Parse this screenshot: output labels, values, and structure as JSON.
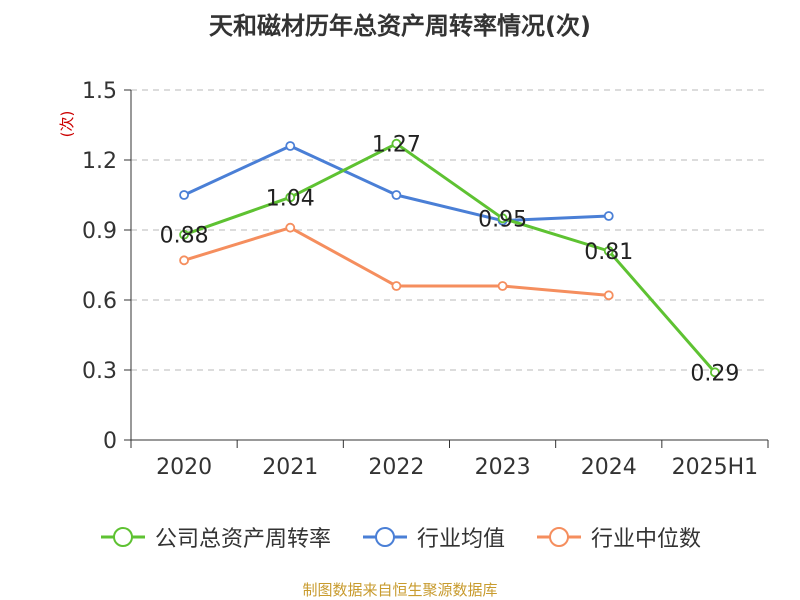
{
  "title": "天和磁材历年总资产周转率情况(次)",
  "source": "制图数据来自恒生聚源数据库",
  "chart_data": {
    "type": "line",
    "title": "天和磁材历年总资产周转率情况(次)",
    "ylabel": "(次)",
    "xlabel": "",
    "categories": [
      "2020",
      "2021",
      "2022",
      "2023",
      "2024",
      "2025H1"
    ],
    "ylim": [
      0,
      1.5
    ],
    "yticks": [
      0,
      0.3,
      0.6,
      0.9,
      1.2,
      1.5
    ],
    "ytick_labels": [
      "0",
      "0.3",
      "0.6",
      "0.9",
      "1.2",
      "1.5"
    ],
    "grid": true,
    "legend_position": "bottom",
    "series": [
      {
        "name": "公司总资产周转率",
        "color": "#5ec232",
        "values": [
          0.88,
          1.04,
          1.27,
          0.95,
          0.81,
          0.29
        ],
        "labels": [
          "0.88",
          "1.04",
          "1.27",
          "0.95",
          "0.81",
          "0.29"
        ]
      },
      {
        "name": "行业均值",
        "color": "#4a7fd6",
        "values": [
          1.05,
          1.26,
          1.05,
          0.94,
          0.96,
          null
        ],
        "labels": []
      },
      {
        "name": "行业中位数",
        "color": "#f58e5e",
        "values": [
          0.77,
          0.91,
          0.66,
          0.66,
          0.62,
          null
        ],
        "labels": []
      }
    ]
  }
}
